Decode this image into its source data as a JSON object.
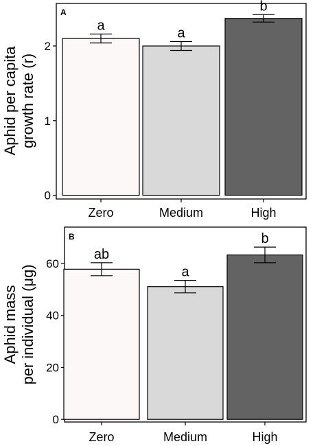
{
  "chart_data": [
    {
      "panel": "A",
      "type": "bar",
      "categories": [
        "Zero",
        "Medium",
        "High"
      ],
      "values": [
        2.1,
        2.0,
        2.37
      ],
      "errors": [
        0.06,
        0.06,
        0.05
      ],
      "significance": [
        "a",
        "a",
        "b"
      ],
      "colors": [
        "#fdf8f8",
        "#d9d9d9",
        "#636363"
      ],
      "ylabel_lines": [
        "Aphid per capita",
        "growth rate (r)"
      ],
      "yticks": [
        0,
        1,
        2
      ],
      "ylim": [
        -0.05,
        2.57
      ],
      "grid": false
    },
    {
      "panel": "B",
      "type": "bar",
      "categories": [
        "Zero",
        "Medium",
        "High"
      ],
      "values": [
        57.8,
        51.1,
        63.3
      ],
      "errors": [
        2.5,
        2.4,
        3.0
      ],
      "significance": [
        "ab",
        "a",
        "b"
      ],
      "colors": [
        "#fdf8f8",
        "#d9d9d9",
        "#636363"
      ],
      "ylabel_lines": [
        "Aphid mass",
        "per individual (μg)"
      ],
      "yticks": [
        0,
        20,
        40,
        60
      ],
      "ylim": [
        -1,
        74
      ],
      "grid": false
    }
  ]
}
